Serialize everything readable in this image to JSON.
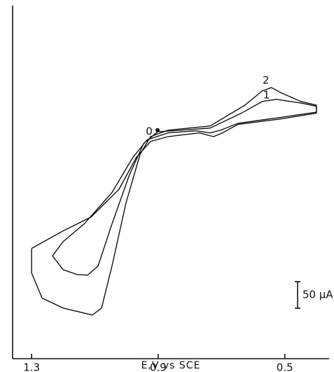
{
  "chart_data": {
    "type": "line",
    "x_label": "E,V vs SCE",
    "xlim": [
      1.36,
      0.36
    ],
    "xticks": [
      1.3,
      0.9,
      0.5
    ],
    "ylim": [
      0,
      663
    ],
    "color": "#111111",
    "series": [
      {
        "name": "0",
        "color": "#111111",
        "x": [
          0.902
        ],
        "values": [
          429
        ]
      },
      {
        "name": "1",
        "color": "#111111",
        "x": [
          1.234,
          1.2,
          1.156,
          1.123,
          1.09,
          1.046,
          0.991,
          0.946,
          0.902,
          0.736,
          0.637,
          0.571,
          0.527,
          0.449,
          0.4,
          0.4,
          0.515,
          0.648,
          0.703,
          0.736,
          0.781,
          0.869,
          0.935,
          0.98,
          1.046,
          1.134,
          1.2,
          1.234
        ],
        "values": [
          193,
          167,
          158,
          157,
          174,
          253,
          345,
          404,
          426,
          433,
          461,
          483,
          487,
          480,
          474,
          463,
          453,
          442,
          429,
          424,
          428,
          424,
          411,
          378,
          312,
          253,
          220,
          193
        ]
      },
      {
        "name": "2",
        "color": "#111111",
        "x": [
          1.3,
          1.3,
          1.267,
          1.2,
          1.108,
          1.079,
          1.046,
          1.002,
          0.957,
          0.924,
          0.869,
          0.736,
          0.626,
          0.571,
          0.542,
          0.511,
          0.449,
          0.4,
          0.4,
          0.515,
          0.648,
          0.697,
          0.725,
          0.77,
          0.869,
          0.924,
          0.969,
          1.024,
          1.112,
          1.2,
          1.3
        ],
        "values": [
          207,
          161,
          114,
          95,
          82,
          95,
          174,
          292,
          384,
          417,
          429,
          437,
          476,
          503,
          509,
          499,
          483,
          476,
          461,
          450,
          440,
          424,
          417,
          424,
          417,
          408,
          378,
          318,
          266,
          240,
          207
        ]
      }
    ],
    "scale_bar": {
      "value": 50,
      "label": "50 μA"
    }
  }
}
